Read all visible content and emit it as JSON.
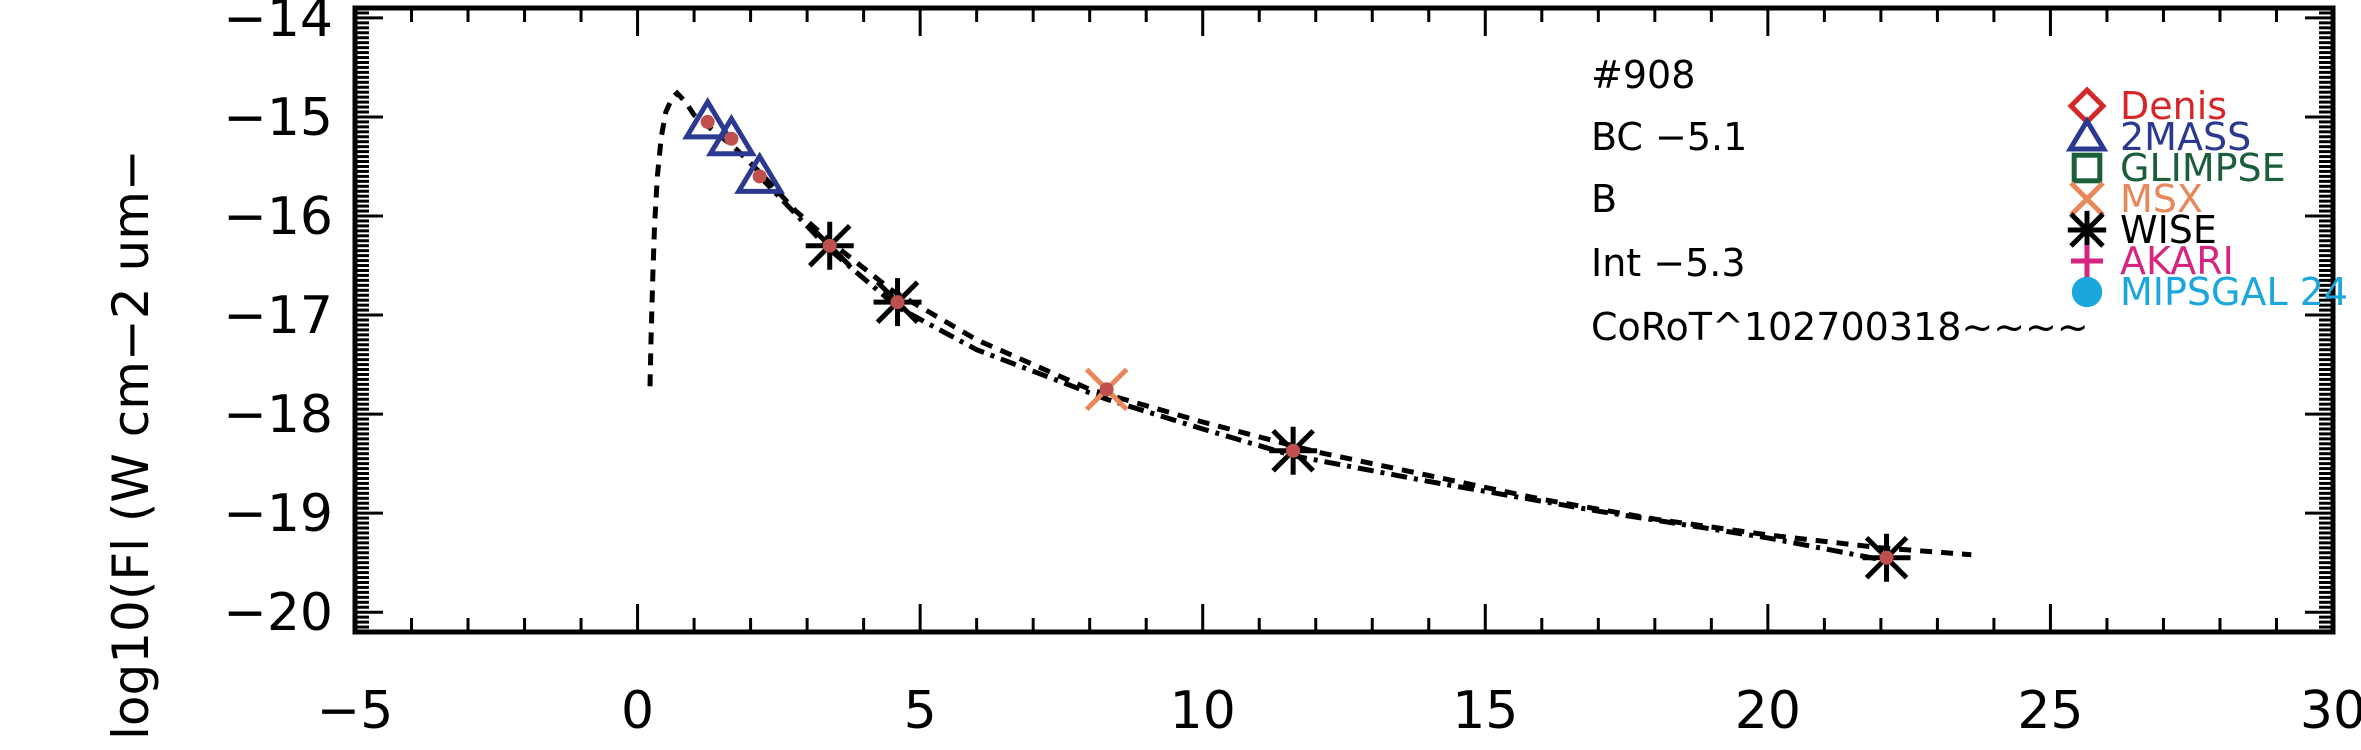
{
  "chart_data": {
    "type": "scatter",
    "xlim": [
      -5,
      30
    ],
    "ylim": [
      -20.2,
      -13.9
    ],
    "x_ticks": [
      -5,
      0,
      5,
      10,
      15,
      20,
      25,
      30
    ],
    "x_tick_labels": [
      "−5",
      "0",
      "5",
      "10",
      "15",
      "20",
      "25",
      "30"
    ],
    "y_ticks": [
      -20,
      -19,
      -18,
      -17,
      -16,
      -15,
      -14
    ],
    "y_tick_labels": [
      "−20",
      "−19",
      "−18",
      "−17",
      "−16",
      "−15",
      "−14"
    ],
    "ylabel": "log10(Fl (W cm−2 um−",
    "xlabel": "",
    "annotations": [
      "#908",
      "BC  −5.1",
      "B",
      "Int  −5.3",
      "CoRoT^102700318~~~~"
    ],
    "legend": {
      "placement": "right",
      "entries": [
        {
          "name": "Denis",
          "marker": "diamond",
          "color": "#d62728"
        },
        {
          "name": "2MASS",
          "marker": "triangle",
          "color": "#2b3990"
        },
        {
          "name": "GLIMPSE",
          "marker": "square",
          "color": "#1a5e3a"
        },
        {
          "name": "MSX",
          "marker": "x",
          "color": "#e8875a"
        },
        {
          "name": "WISE",
          "marker": "asterisk",
          "color": "#000000"
        },
        {
          "name": "AKARI",
          "marker": "plus",
          "color": "#d6247f"
        },
        {
          "name": "MIPSGAL 24",
          "marker": "circle",
          "color": "#1ba6dc"
        }
      ]
    },
    "series": [
      {
        "name": "2MASS",
        "marker": "triangle",
        "x": [
          1.24,
          1.66,
          2.16
        ],
        "y": [
          -15.05,
          -15.22,
          -15.6
        ]
      },
      {
        "name": "WISE",
        "marker": "asterisk",
        "x": [
          3.4,
          4.6,
          11.6,
          22.1
        ],
        "y": [
          -16.3,
          -16.87,
          -18.37,
          -19.45
        ]
      },
      {
        "name": "MSX",
        "marker": "x",
        "x": [
          8.3
        ],
        "y": [
          -17.75
        ]
      }
    ],
    "photometry_dots": {
      "color": "#c0504d",
      "x": [
        1.24,
        1.66,
        2.16,
        3.4,
        4.6,
        8.3,
        11.6,
        22.1
      ],
      "y": [
        -15.05,
        -15.22,
        -15.6,
        -16.3,
        -16.87,
        -17.75,
        -18.37,
        -19.45
      ]
    },
    "model_curve": {
      "style": "dashed",
      "x": [
        0.22,
        0.24,
        0.27,
        0.3,
        0.35,
        0.42,
        0.5,
        0.6,
        0.7,
        0.85,
        1.0,
        1.3,
        1.7,
        2.2,
        2.8,
        3.5,
        4.5,
        6,
        8,
        10,
        12,
        14,
        16,
        18,
        20,
        22,
        23.6
      ],
      "y": [
        -17.72,
        -17.2,
        -16.6,
        -16.1,
        -15.6,
        -15.2,
        -14.95,
        -14.82,
        -14.76,
        -14.85,
        -14.98,
        -15.12,
        -15.3,
        -15.58,
        -15.95,
        -16.3,
        -16.75,
        -17.25,
        -17.75,
        -18.08,
        -18.38,
        -18.62,
        -18.86,
        -19.06,
        -19.22,
        -19.35,
        -19.42
      ]
    },
    "fit_curve": {
      "style": "dash-dot",
      "x": [
        2.16,
        3.4,
        4.6,
        6,
        8.3,
        10,
        11.6,
        14,
        17,
        20,
        22.1
      ],
      "y": [
        -15.6,
        -16.34,
        -16.92,
        -17.35,
        -17.85,
        -18.15,
        -18.42,
        -18.68,
        -18.98,
        -19.25,
        -19.48
      ]
    }
  }
}
